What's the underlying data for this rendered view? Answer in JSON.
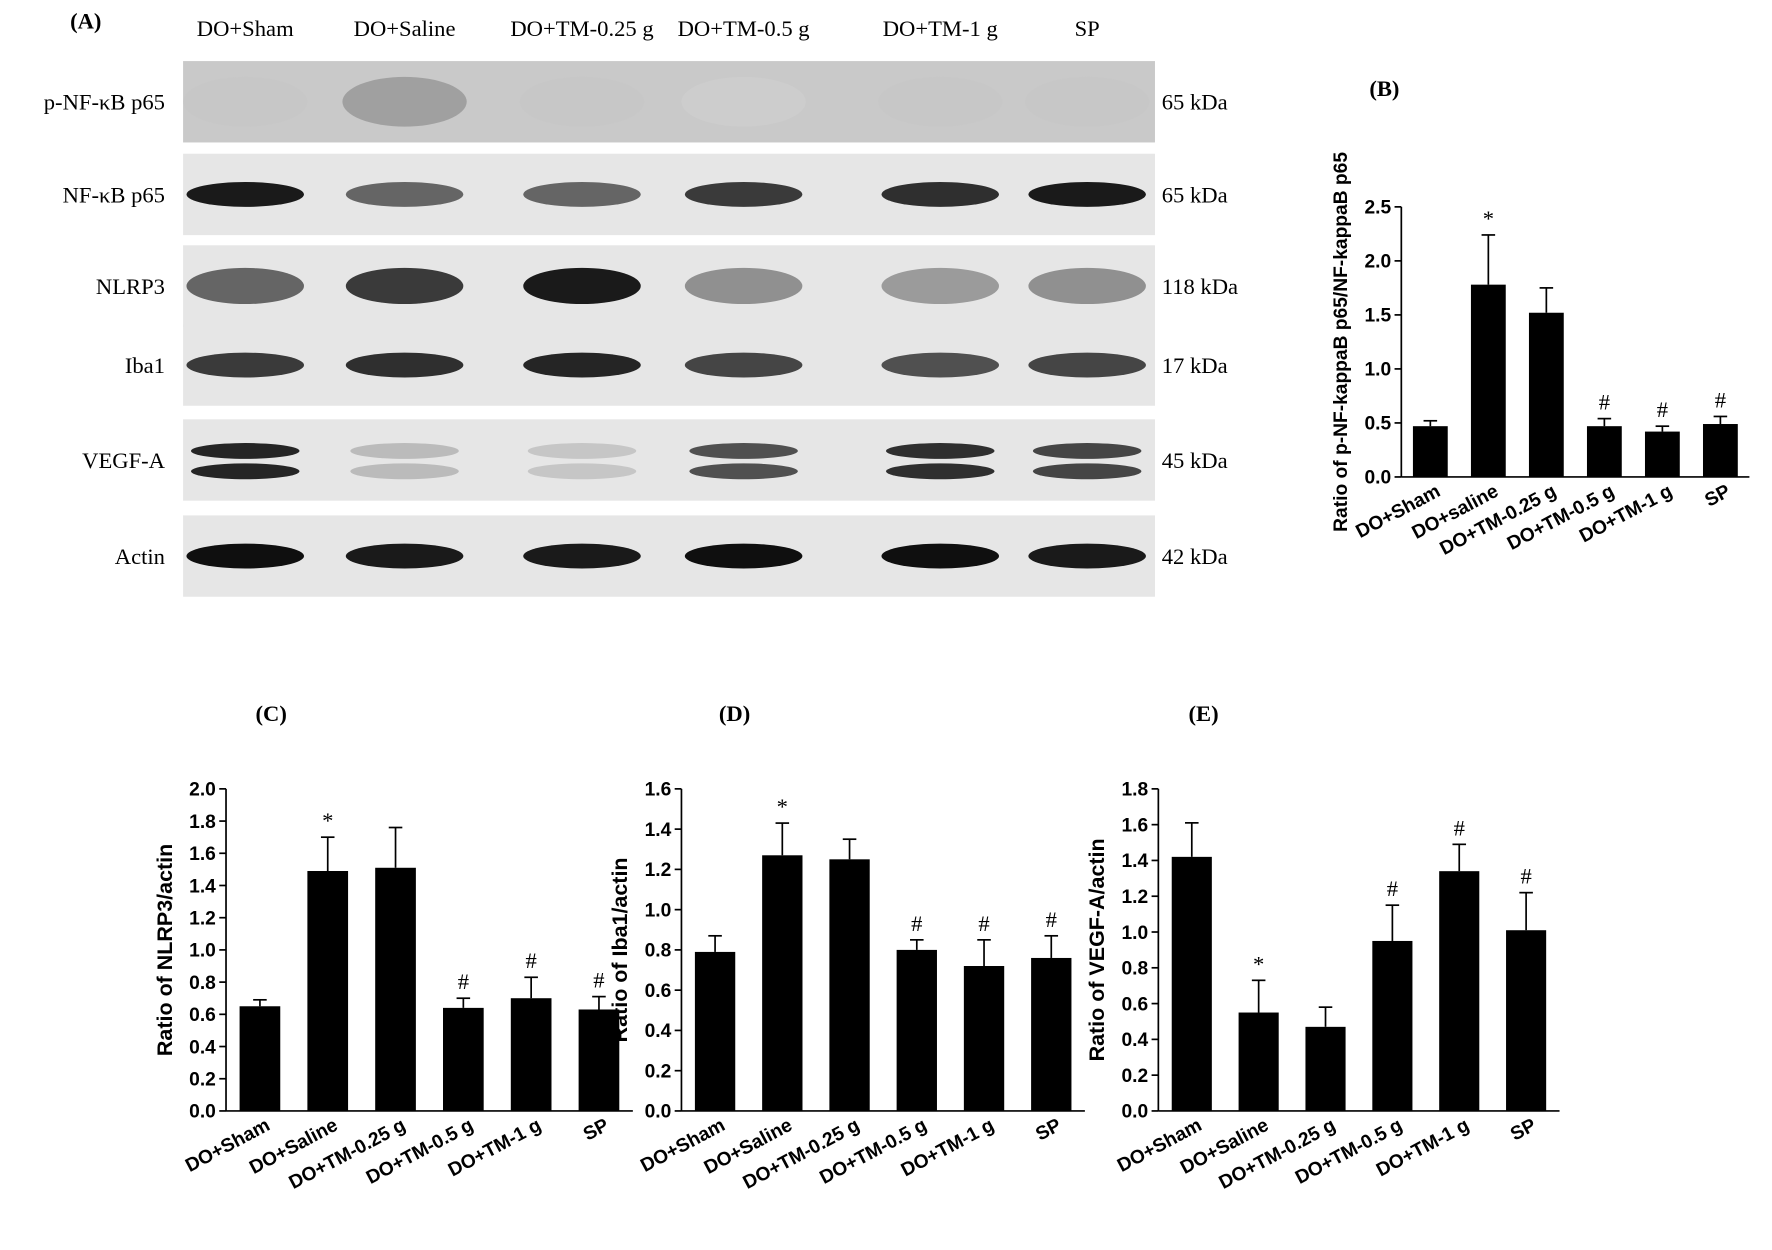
{
  "blot": {
    "panel": "(A)",
    "lanes": [
      "DO+Sham",
      "DO+Saline",
      "DO+TM-0.25 g",
      "DO+TM-0.5 g",
      "DO+TM-1 g",
      "SP"
    ],
    "rows": [
      {
        "label": "p-NF-κB p65",
        "size": "65 kDa"
      },
      {
        "label": "NF-κB p65",
        "size": "65 kDa"
      },
      {
        "label": "NLRP3",
        "size": "118 kDa"
      },
      {
        "label": "Iba1",
        "size": "17 kDa"
      },
      {
        "label": "VEGF-A",
        "size": "45 kDa"
      },
      {
        "label": "Actin",
        "size": "42 kDa"
      }
    ]
  },
  "chart_data": [
    {
      "type": "bar",
      "title": "(B)",
      "y_label": "Ratio of p-NF-kappaB p65/NF-kappaB p65",
      "categories": [
        "DO+Sham",
        "DO+saline",
        "DO+TM-0.25 g",
        "DO+TM-0.5 g",
        "DO+TM-1 g",
        "SP"
      ],
      "values": [
        0.47,
        1.78,
        1.52,
        0.47,
        0.42,
        0.49
      ],
      "errors": [
        0.05,
        0.46,
        0.23,
        0.07,
        0.05,
        0.07
      ],
      "annotations": [
        null,
        "*",
        null,
        "#",
        "#",
        "#"
      ],
      "color": "#000000",
      "ylim": [
        0,
        2.5
      ],
      "yticks": [
        {
          "value": 0,
          "label": "0.0"
        },
        0.5,
        {
          "value": 1,
          "label": "1.0"
        },
        1.5,
        {
          "value": 2,
          "label": "2.0"
        },
        2.5
      ]
    },
    {
      "type": "bar",
      "title": "(C)",
      "y_label": "Ratio of NLRP3/actin",
      "categories": [
        "DO+Sham",
        "DO+Saline",
        "DO+TM-0.25 g",
        "DO+TM-0.5 g",
        "DO+TM-1 g",
        "SP"
      ],
      "values": [
        0.65,
        1.49,
        1.51,
        0.64,
        0.7,
        0.63
      ],
      "errors": [
        0.04,
        0.21,
        0.25,
        0.06,
        0.13,
        0.08
      ],
      "annotations": [
        null,
        "*",
        null,
        "#",
        "#",
        "#"
      ],
      "color": "#000000",
      "ylim": [
        0,
        2
      ],
      "yticks": [
        {
          "value": 0,
          "label": "0.0"
        },
        0.2,
        0.4,
        0.6,
        0.8,
        {
          "value": 1,
          "label": "1.0"
        },
        1.2,
        1.4,
        1.6,
        1.8,
        {
          "value": 2,
          "label": "2.0"
        }
      ]
    },
    {
      "type": "bar",
      "title": "(D)",
      "y_label": "Ratio of Iba1/actin",
      "categories": [
        "DO+Sham",
        "DO+Saline",
        "DO+TM-0.25 g",
        "DO+TM-0.5 g",
        "DO+TM-1 g",
        "SP"
      ],
      "values": [
        0.79,
        1.27,
        1.25,
        0.8,
        0.72,
        0.76
      ],
      "errors": [
        0.08,
        0.16,
        0.1,
        0.05,
        0.13,
        0.11
      ],
      "annotations": [
        null,
        "*",
        null,
        "#",
        "#",
        "#"
      ],
      "color": "#000000",
      "ylim": [
        0,
        1.6
      ],
      "yticks": [
        {
          "value": 0,
          "label": "0.0"
        },
        0.2,
        0.4,
        0.6,
        0.8,
        {
          "value": 1,
          "label": "1.0"
        },
        1.2,
        1.4,
        1.6
      ]
    },
    {
      "type": "bar",
      "title": "(E)",
      "y_label": "Ratio of VEGF-A/actin",
      "categories": [
        "DO+Sham",
        "DO+Saline",
        "DO+TM-0.25 g",
        "DO+TM-0.5 g",
        "DO+TM-1 g",
        "SP"
      ],
      "values": [
        1.42,
        0.55,
        0.47,
        0.95,
        1.34,
        1.01
      ],
      "errors": [
        0.19,
        0.18,
        0.11,
        0.2,
        0.15,
        0.21
      ],
      "annotations": [
        null,
        "*",
        null,
        "#",
        "#",
        "#"
      ],
      "color": "#000000",
      "ylim": [
        0,
        1.8
      ],
      "yticks": [
        {
          "value": 0,
          "label": "0.0"
        },
        0.2,
        0.4,
        0.6,
        0.8,
        {
          "value": 1,
          "label": "1.0"
        },
        1.2,
        1.4,
        1.6,
        1.8
      ]
    }
  ]
}
